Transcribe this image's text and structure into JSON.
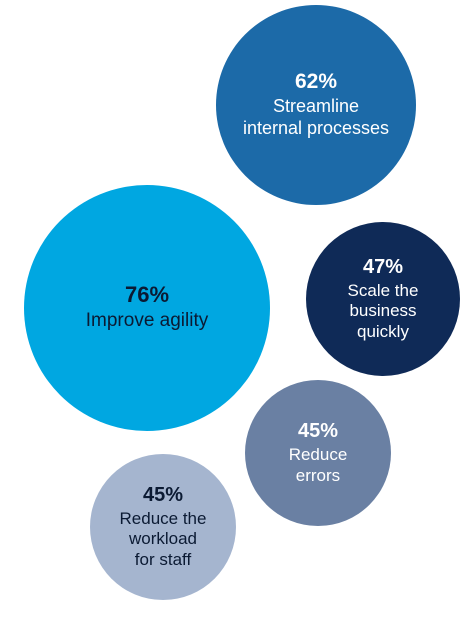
{
  "chart_data": {
    "type": "bubble",
    "series": [
      {
        "value": 62,
        "value_label": "62%",
        "label_lines": [
          "Streamline",
          "internal processes"
        ],
        "color": "#1c6aa8",
        "text_color": "#ffffff"
      },
      {
        "value": 76,
        "value_label": "76%",
        "label_lines": [
          "Improve agility"
        ],
        "color": "#00a7e1",
        "text_color": "#0b1a33"
      },
      {
        "value": 47,
        "value_label": "47%",
        "label_lines": [
          "Scale the",
          "business",
          "quickly"
        ],
        "color": "#0f2a57",
        "text_color": "#ffffff"
      },
      {
        "value": 45,
        "value_label": "45%",
        "label_lines": [
          "Reduce",
          "errors"
        ],
        "color": "#6a80a3",
        "text_color": "#ffffff"
      },
      {
        "value": 45,
        "value_label": "45%",
        "label_lines": [
          "Reduce the",
          "workload",
          "for staff"
        ],
        "color": "#a5b5cf",
        "text_color": "#0b1a33"
      }
    ]
  }
}
